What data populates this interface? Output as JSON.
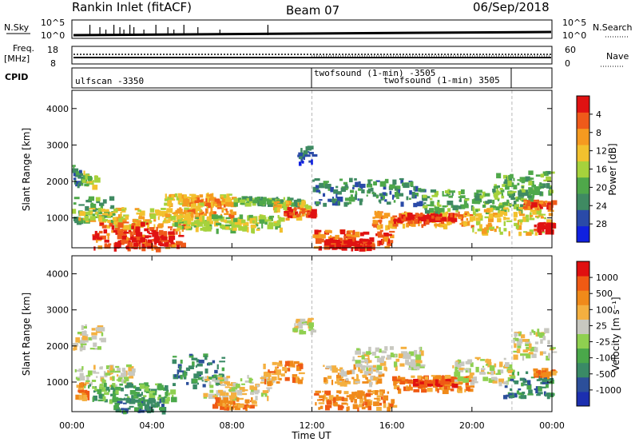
{
  "header": {
    "station": "Rankin Inlet (fitACF)",
    "beam": "Beam 07",
    "date": "06/Sep/2018"
  },
  "nsky_panel": {
    "left_label": "N.Sky",
    "right_label": "N.Search",
    "left_ticks": [
      "10^5",
      "10^0"
    ],
    "right_ticks": [
      "10^5",
      "10^0"
    ]
  },
  "freq_panel": {
    "left_label_1": "Freq.",
    "left_label_2": "[MHz]",
    "left_ticks": [
      "18",
      "8"
    ],
    "right_ticks": [
      "60",
      "0"
    ],
    "right_label": "Nave"
  },
  "cpid_panel": {
    "label": "CPID",
    "segments": [
      {
        "name": "ulfscan -3350",
        "start_hour": 0
      },
      {
        "name": "twofsound (1-min) -3505",
        "start_hour": 12
      },
      {
        "name": "twofsound (1-min) 3505",
        "start_hour": 12
      }
    ]
  },
  "x_axis": {
    "label": "Time UT",
    "ticks": [
      "00:00",
      "04:00",
      "08:00",
      "12:00",
      "16:00",
      "20:00",
      "00:00"
    ]
  },
  "chart_data": [
    {
      "type": "heatmap",
      "panel": "power",
      "ylabel": "Slant Range [km]",
      "y_ticks": [
        "1000",
        "2000",
        "3000",
        "4000"
      ],
      "ylim": [
        180,
        4500
      ],
      "xlim_hours": [
        0,
        24
      ],
      "colorbar_label": "Power [dB]",
      "colorbar_ticks": [
        "4",
        "8",
        "12",
        "16",
        "20",
        "24",
        "28"
      ],
      "colorbar_colors": [
        "#1020e0",
        "#2a4aa8",
        "#3f8a62",
        "#4fa84a",
        "#a6d23c",
        "#f2c12e",
        "#f59a20",
        "#ef5a1a",
        "#e01212"
      ],
      "regions": [
        {
          "t0": 0.0,
          "t1": 0.5,
          "r0": 1900,
          "r1": 2500,
          "level": 2
        },
        {
          "t0": 0.5,
          "t1": 1.2,
          "r0": 1900,
          "r1": 2300,
          "level": 4
        },
        {
          "t0": 0.0,
          "t1": 2.0,
          "r0": 900,
          "r1": 1600,
          "level": 3
        },
        {
          "t0": 0.3,
          "t1": 6.5,
          "r0": 800,
          "r1": 1300,
          "level": 5
        },
        {
          "t0": 1.0,
          "t1": 5.5,
          "r0": 200,
          "r1": 900,
          "level": 7
        },
        {
          "t0": 2.0,
          "t1": 5.0,
          "r0": 200,
          "r1": 700,
          "level": 8
        },
        {
          "t0": 4.5,
          "t1": 8.0,
          "r0": 1400,
          "r1": 1700,
          "level": 5
        },
        {
          "t0": 5.5,
          "t1": 8.0,
          "r0": 1100,
          "r1": 1600,
          "level": 6
        },
        {
          "t0": 5.0,
          "t1": 10.5,
          "r0": 700,
          "r1": 1100,
          "level": 4
        },
        {
          "t0": 8.0,
          "t1": 11.5,
          "r0": 1400,
          "r1": 1600,
          "level": 3
        },
        {
          "t0": 10.0,
          "t1": 11.8,
          "r0": 1000,
          "r1": 1500,
          "level": 5
        },
        {
          "t0": 10.5,
          "t1": 12.0,
          "r0": 1100,
          "r1": 1300,
          "level": 7
        },
        {
          "t0": 11.2,
          "t1": 12.0,
          "r0": 2500,
          "r1": 3000,
          "level": 1
        },
        {
          "t0": 12.0,
          "t1": 16.0,
          "r0": 200,
          "r1": 700,
          "level": 7
        },
        {
          "t0": 12.5,
          "t1": 15.0,
          "r0": 200,
          "r1": 450,
          "level": 8
        },
        {
          "t0": 12.0,
          "t1": 17.5,
          "r0": 1400,
          "r1": 2100,
          "level": 2
        },
        {
          "t0": 15.0,
          "t1": 20.0,
          "r0": 800,
          "r1": 1200,
          "level": 6
        },
        {
          "t0": 16.0,
          "t1": 19.0,
          "r0": 950,
          "r1": 1150,
          "level": 8
        },
        {
          "t0": 17.5,
          "t1": 23.0,
          "r0": 1200,
          "r1": 1800,
          "level": 3
        },
        {
          "t0": 20.0,
          "t1": 24.0,
          "r0": 600,
          "r1": 1300,
          "level": 5
        },
        {
          "t0": 21.0,
          "t1": 24.0,
          "r0": 1700,
          "r1": 2300,
          "level": 3
        },
        {
          "t0": 22.5,
          "t1": 24.0,
          "r0": 1300,
          "r1": 1500,
          "level": 7
        },
        {
          "t0": 23.0,
          "t1": 24.0,
          "r0": 650,
          "r1": 900,
          "level": 8
        }
      ]
    },
    {
      "type": "heatmap",
      "panel": "velocity",
      "ylabel": "Slant Range [km]",
      "y_ticks": [
        "1000",
        "2000",
        "3000",
        "4000"
      ],
      "ylim": [
        180,
        4500
      ],
      "xlim_hours": [
        0,
        24
      ],
      "colorbar_label": "Velocity [m s⁻¹]",
      "colorbar_ticks": [
        "1000",
        "500",
        "100",
        "25",
        "-25",
        "-100",
        "-500",
        "-1000"
      ],
      "colorbar_colors": [
        "#1c2fb0",
        "#2c4f9a",
        "#3a8a66",
        "#4aa84a",
        "#8fd050",
        "#c8c8c0",
        "#f4b040",
        "#f08a1a",
        "#ef5a14",
        "#e01010"
      ],
      "regions": [
        {
          "t0": 0.0,
          "t1": 1.5,
          "r0": 1900,
          "r1": 2600,
          "level": 5
        },
        {
          "t0": 0.0,
          "t1": 3.0,
          "r0": 900,
          "r1": 1500,
          "level": 5
        },
        {
          "t0": 0.0,
          "t1": 0.8,
          "r0": 500,
          "r1": 1000,
          "level": 7
        },
        {
          "t0": 0.8,
          "t1": 5.0,
          "r0": 500,
          "r1": 1000,
          "level": 3
        },
        {
          "t0": 2.0,
          "t1": 4.5,
          "r0": 200,
          "r1": 600,
          "level": 2
        },
        {
          "t0": 5.0,
          "t1": 7.5,
          "r0": 900,
          "r1": 1800,
          "level": 2
        },
        {
          "t0": 6.5,
          "t1": 10.0,
          "r0": 600,
          "r1": 1200,
          "level": 5
        },
        {
          "t0": 7.0,
          "t1": 9.0,
          "r0": 300,
          "r1": 600,
          "level": 7
        },
        {
          "t0": 9.5,
          "t1": 11.5,
          "r0": 1000,
          "r1": 1600,
          "level": 7
        },
        {
          "t0": 11.0,
          "t1": 12.0,
          "r0": 2400,
          "r1": 2800,
          "level": 5
        },
        {
          "t0": 12.0,
          "t1": 16.0,
          "r0": 300,
          "r1": 800,
          "level": 7
        },
        {
          "t0": 12.5,
          "t1": 15.5,
          "r0": 1000,
          "r1": 1500,
          "level": 6
        },
        {
          "t0": 14.0,
          "t1": 17.5,
          "r0": 1400,
          "r1": 2000,
          "level": 5
        },
        {
          "t0": 16.0,
          "t1": 20.0,
          "r0": 800,
          "r1": 1200,
          "level": 7
        },
        {
          "t0": 17.0,
          "t1": 19.0,
          "r0": 950,
          "r1": 1100,
          "level": 8
        },
        {
          "t0": 19.0,
          "t1": 22.0,
          "r0": 1000,
          "r1": 1700,
          "level": 5
        },
        {
          "t0": 21.5,
          "t1": 24.0,
          "r0": 600,
          "r1": 1300,
          "level": 2
        },
        {
          "t0": 22.0,
          "t1": 24.0,
          "r0": 1700,
          "r1": 2500,
          "level": 5
        },
        {
          "t0": 23.0,
          "t1": 24.0,
          "r0": 1200,
          "r1": 1400,
          "level": 7
        }
      ]
    }
  ]
}
